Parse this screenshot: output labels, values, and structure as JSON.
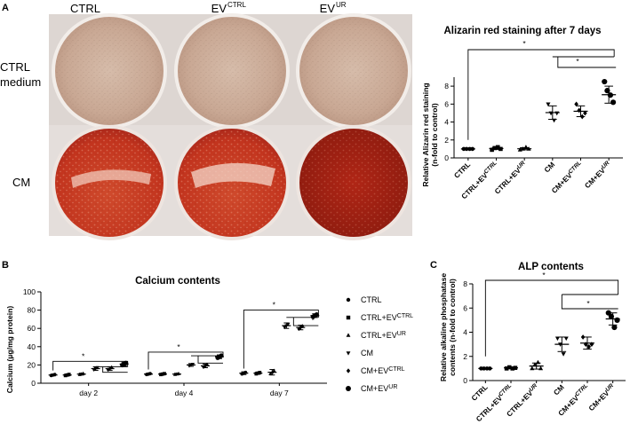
{
  "panels": {
    "a": "A",
    "b": "B",
    "c": "C"
  },
  "photo": {
    "columns": [
      "CTRL",
      "EV",
      "EV"
    ],
    "column_superscripts": [
      "",
      "CTRL",
      "UR"
    ],
    "rows": [
      "CTRL",
      "medium",
      "CM"
    ]
  },
  "colors": {
    "wells_ctrl": "#c9a894",
    "wells_cm": "#c2341e",
    "cm_ur_dark": "#9e1c10",
    "plate_bg": "#dcd6d2",
    "axis": "#000000"
  },
  "chart_data": [
    {
      "type": "scatter",
      "title": "Alizarin red staining after 7 days",
      "ylabel": "Relative Alizarin red staining (n-fold to control)",
      "ylim": [
        0,
        9
      ],
      "yticks": [
        0,
        2,
        4,
        6,
        8
      ],
      "categories": [
        {
          "base": "CTRL",
          "sup": ""
        },
        {
          "base": "CTRL+EV",
          "sup": "CTRL"
        },
        {
          "base": "CTRL+EV",
          "sup": "UR"
        },
        {
          "base": "CM",
          "sup": ""
        },
        {
          "base": "CM+EV",
          "sup": "CTRL"
        },
        {
          "base": "CM+EV",
          "sup": "UR"
        }
      ],
      "points": [
        [
          1,
          1,
          1,
          1
        ],
        [
          0.9,
          1.1,
          1.2,
          1.0
        ],
        [
          0.9,
          1.0,
          1.2,
          1.0
        ],
        [
          6.0,
          5.0,
          4.2,
          5.0
        ],
        [
          6.0,
          5.3,
          4.6,
          5.0
        ],
        [
          8.5,
          7.5,
          7.0,
          6.2
        ]
      ],
      "means": [
        1.0,
        1.05,
        1.02,
        5.05,
        5.2,
        7.05
      ],
      "sd": [
        0,
        0.12,
        0.12,
        0.75,
        0.6,
        0.95
      ],
      "significance": [
        "*",
        "*"
      ]
    },
    {
      "type": "scatter",
      "title": "Calcium contents",
      "ylabel": "Calcium (µg/mg protein)",
      "ylim": [
        0,
        100
      ],
      "yticks": [
        0,
        20,
        40,
        60,
        80,
        100
      ],
      "groups": [
        "day 2",
        "day 4",
        "day 7"
      ],
      "series": [
        {
          "name": "CTRL",
          "sup": "",
          "marker": "circle",
          "means": [
            9,
            10,
            11
          ],
          "sd": [
            1,
            0.8,
            1.5
          ]
        },
        {
          "name": "CTRL+EV",
          "sup": "CTRL",
          "marker": "square",
          "means": [
            9,
            10,
            11
          ],
          "sd": [
            1,
            0.8,
            1.2
          ]
        },
        {
          "name": "CTRL+EV",
          "sup": "UR",
          "marker": "triangle",
          "means": [
            10,
            10,
            12
          ],
          "sd": [
            1,
            0.8,
            3
          ]
        },
        {
          "name": "CM",
          "sup": "",
          "marker": "triangle-down",
          "means": [
            16,
            20,
            63
          ],
          "sd": [
            2,
            1.5,
            3
          ]
        },
        {
          "name": "CM+EV",
          "sup": "CTRL",
          "marker": "diamond",
          "means": [
            16,
            19,
            61
          ],
          "sd": [
            2,
            2,
            2.5
          ]
        },
        {
          "name": "CM+EV",
          "sup": "UR",
          "marker": "circle-large",
          "means": [
            21,
            29,
            74
          ],
          "sd": [
            2,
            2,
            2
          ]
        }
      ],
      "significance": [
        "*",
        "*",
        "*",
        "*",
        "*",
        "*"
      ]
    },
    {
      "type": "scatter",
      "title": "ALP contents",
      "ylabel": "Relative alkaline phosphatase contents (n-fold to control)",
      "ylim": [
        0,
        8
      ],
      "yticks": [
        0,
        2,
        4,
        6,
        8
      ],
      "categories": [
        {
          "base": "CTRL",
          "sup": ""
        },
        {
          "base": "CTRL+EV",
          "sup": "CTRL"
        },
        {
          "base": "CTRL+EV",
          "sup": "UR"
        },
        {
          "base": "CM",
          "sup": ""
        },
        {
          "base": "CM+EV",
          "sup": "CTRL"
        },
        {
          "base": "CM+EV",
          "sup": "UR"
        }
      ],
      "points": [
        [
          1,
          1,
          1,
          1
        ],
        [
          1.0,
          1.1,
          1.0,
          1.05
        ],
        [
          1.0,
          1.3,
          1.5,
          1.0
        ],
        [
          3.5,
          3.0,
          2.2,
          3.5
        ],
        [
          3.6,
          3.0,
          2.8,
          3.0
        ],
        [
          5.6,
          5.3,
          4.4,
          5.0
        ]
      ],
      "means": [
        1.0,
        1.05,
        1.2,
        3.0,
        3.1,
        5.1
      ],
      "sd": [
        0,
        0.05,
        0.25,
        0.6,
        0.5,
        0.5
      ],
      "significance": [
        "*",
        "*"
      ]
    }
  ]
}
